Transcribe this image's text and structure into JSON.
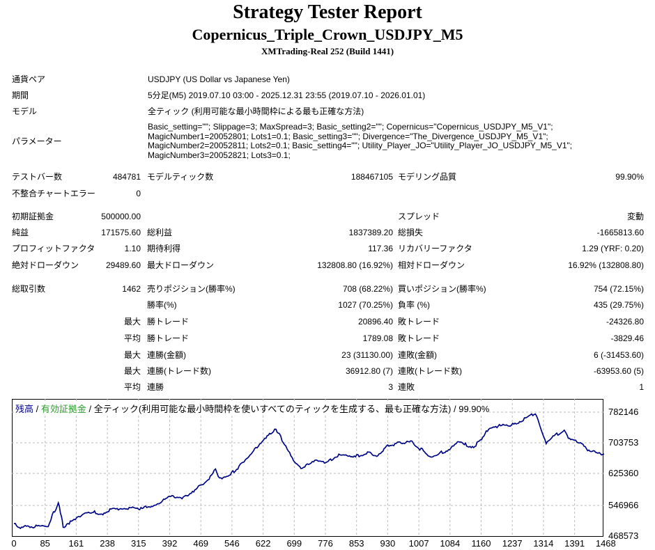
{
  "header": {
    "title": "Strategy Tester Report",
    "expert": "Copernicus_Triple_Crown_USDJPY_M5",
    "server": "XMTrading-Real 252 (Build 1441)"
  },
  "info": {
    "symbol_label": "通貨ペア",
    "symbol": "USDJPY (US Dollar vs Japanese Yen)",
    "period_label": "期間",
    "period": "5分足(M5) 2019.07.10 03:00 - 2025.12.31 23:55 (2019.07.10 - 2026.01.01)",
    "model_label": "モデル",
    "model": "全ティック (利用可能な最小時間枠による最も正確な方法)",
    "params_label": "パラメーター",
    "params": [
      "Basic_setting=\"\"; Slippage=3; MaxSpread=3; Basic_setting2=\"\"; Copernicus=\"Copernicus_USDJPY_M5_V1\";",
      "MagicNumber1=20052801; Lots1=0.1; Basic_setting3=\"\"; Divergence=\"The_Divergence_USDJPY_M5_V1\";",
      "MagicNumber2=20052811; Lots2=0.1; Basic_setting4=\"\"; Utility_Player_JO=\"Utility_Player_JO_USDJPY_M5_V1\";",
      "MagicNumber3=20052821; Lots3=0.1;"
    ]
  },
  "stats": [
    [
      "テストバー数",
      "484781",
      "モデルティック数",
      "188467105",
      "モデリング品質",
      "99.90%"
    ],
    [
      "不整合チャートエラー",
      "0",
      "",
      "",
      "",
      ""
    ],
    [
      "初期証拠金",
      "500000.00",
      "",
      "",
      "スプレッド",
      "変動"
    ],
    [
      "純益",
      "171575.60",
      "総利益",
      "1837389.20",
      "総損失",
      "-1665813.60"
    ],
    [
      "プロフィットファクタ",
      "1.10",
      "期待利得",
      "117.36",
      "リカバリーファクタ",
      "1.29 (YRF: 0.20)"
    ],
    [
      "絶対ドローダウン",
      "29489.60",
      "最大ドローダウン",
      "132808.80 (16.92%)",
      "相対ドローダウン",
      "16.92% (132808.80)"
    ],
    [
      "総取引数",
      "1462",
      "売りポジション(勝率%)",
      "708 (68.22%)",
      "買いポジション(勝率%)",
      "754 (72.15%)"
    ],
    [
      "",
      "",
      "勝率(%)",
      "1027 (70.25%)",
      "負率 (%)",
      "435 (29.75%)"
    ],
    [
      "",
      "最大",
      "勝トレード",
      "20896.40",
      "敗トレード",
      "-24326.80"
    ],
    [
      "",
      "平均",
      "勝トレード",
      "1789.08",
      "敗トレード",
      "-3829.46"
    ],
    [
      "",
      "最大",
      "連勝(金額)",
      "23 (31130.00)",
      "連敗(金額)",
      "6 (-31453.60)"
    ],
    [
      "",
      "最大",
      "連勝(トレード数)",
      "36912.80 (7)",
      "連敗(トレード数)",
      "-63953.60 (5)"
    ],
    [
      "",
      "平均",
      "連勝",
      "3",
      "連敗",
      "1"
    ]
  ],
  "chart_data": {
    "type": "line",
    "legend": {
      "balance": "残高",
      "sep1": " / ",
      "equity": "有効証拠金",
      "desc": " / 全ティック(利用可能な最小時間枠を使いすべてのティックを生成する、最も正確な方法) / 99.90%"
    },
    "colors": {
      "balance": "#00008b",
      "equity": "#2e9b2e"
    },
    "x_ticks": [
      "0",
      "85",
      "161",
      "238",
      "315",
      "392",
      "469",
      "546",
      "622",
      "699",
      "776",
      "853",
      "930",
      "1007",
      "1084",
      "1160",
      "1237",
      "1314",
      "1391",
      "1468"
    ],
    "y_ticks": [
      "782146",
      "703753",
      "625360",
      "546966",
      "468573"
    ],
    "xlim": [
      0,
      1492
    ],
    "ylim": [
      468573,
      800000
    ],
    "series": [
      {
        "name": "残高",
        "x": [
          0,
          10,
          40,
          85,
          95,
          110,
          118,
          122,
          140,
          161,
          200,
          215,
          238,
          280,
          315,
          350,
          392,
          420,
          440,
          469,
          490,
          500,
          510,
          546,
          580,
          600,
          622,
          640,
          650,
          658,
          665,
          690,
          715,
          740,
          776,
          800,
          853,
          880,
          900,
          930,
          960,
          990,
          1000,
          1010,
          1030,
          1060,
          1084,
          1100,
          1120,
          1140,
          1160,
          1180,
          1237,
          1260,
          1290,
          1300,
          1310,
          1320,
          1340,
          1365,
          1375,
          1390,
          1420,
          1440,
          1460,
          1470,
          1475,
          1492
        ],
        "y": [
          500000,
          491000,
          492000,
          495000,
          520000,
          552000,
          520000,
          487000,
          505000,
          520000,
          530000,
          523000,
          535000,
          540000,
          537000,
          548000,
          570000,
          566000,
          580000,
          600000,
          620000,
          640000,
          612000,
          632000,
          665000,
          690000,
          718000,
          728000,
          740000,
          725000,
          712000,
          665000,
          638000,
          658000,
          655000,
          672000,
          672000,
          680000,
          673000,
          698000,
          705000,
          707000,
          690000,
          690000,
          667000,
          680000,
          690000,
          705000,
          700000,
          695000,
          712000,
          745000,
          750000,
          762000,
          778000,
          765000,
          730000,
          703000,
          722000,
          737000,
          718000,
          714000,
          690000,
          680000,
          673000,
          682000,
          665000,
          676000
        ]
      }
    ]
  }
}
